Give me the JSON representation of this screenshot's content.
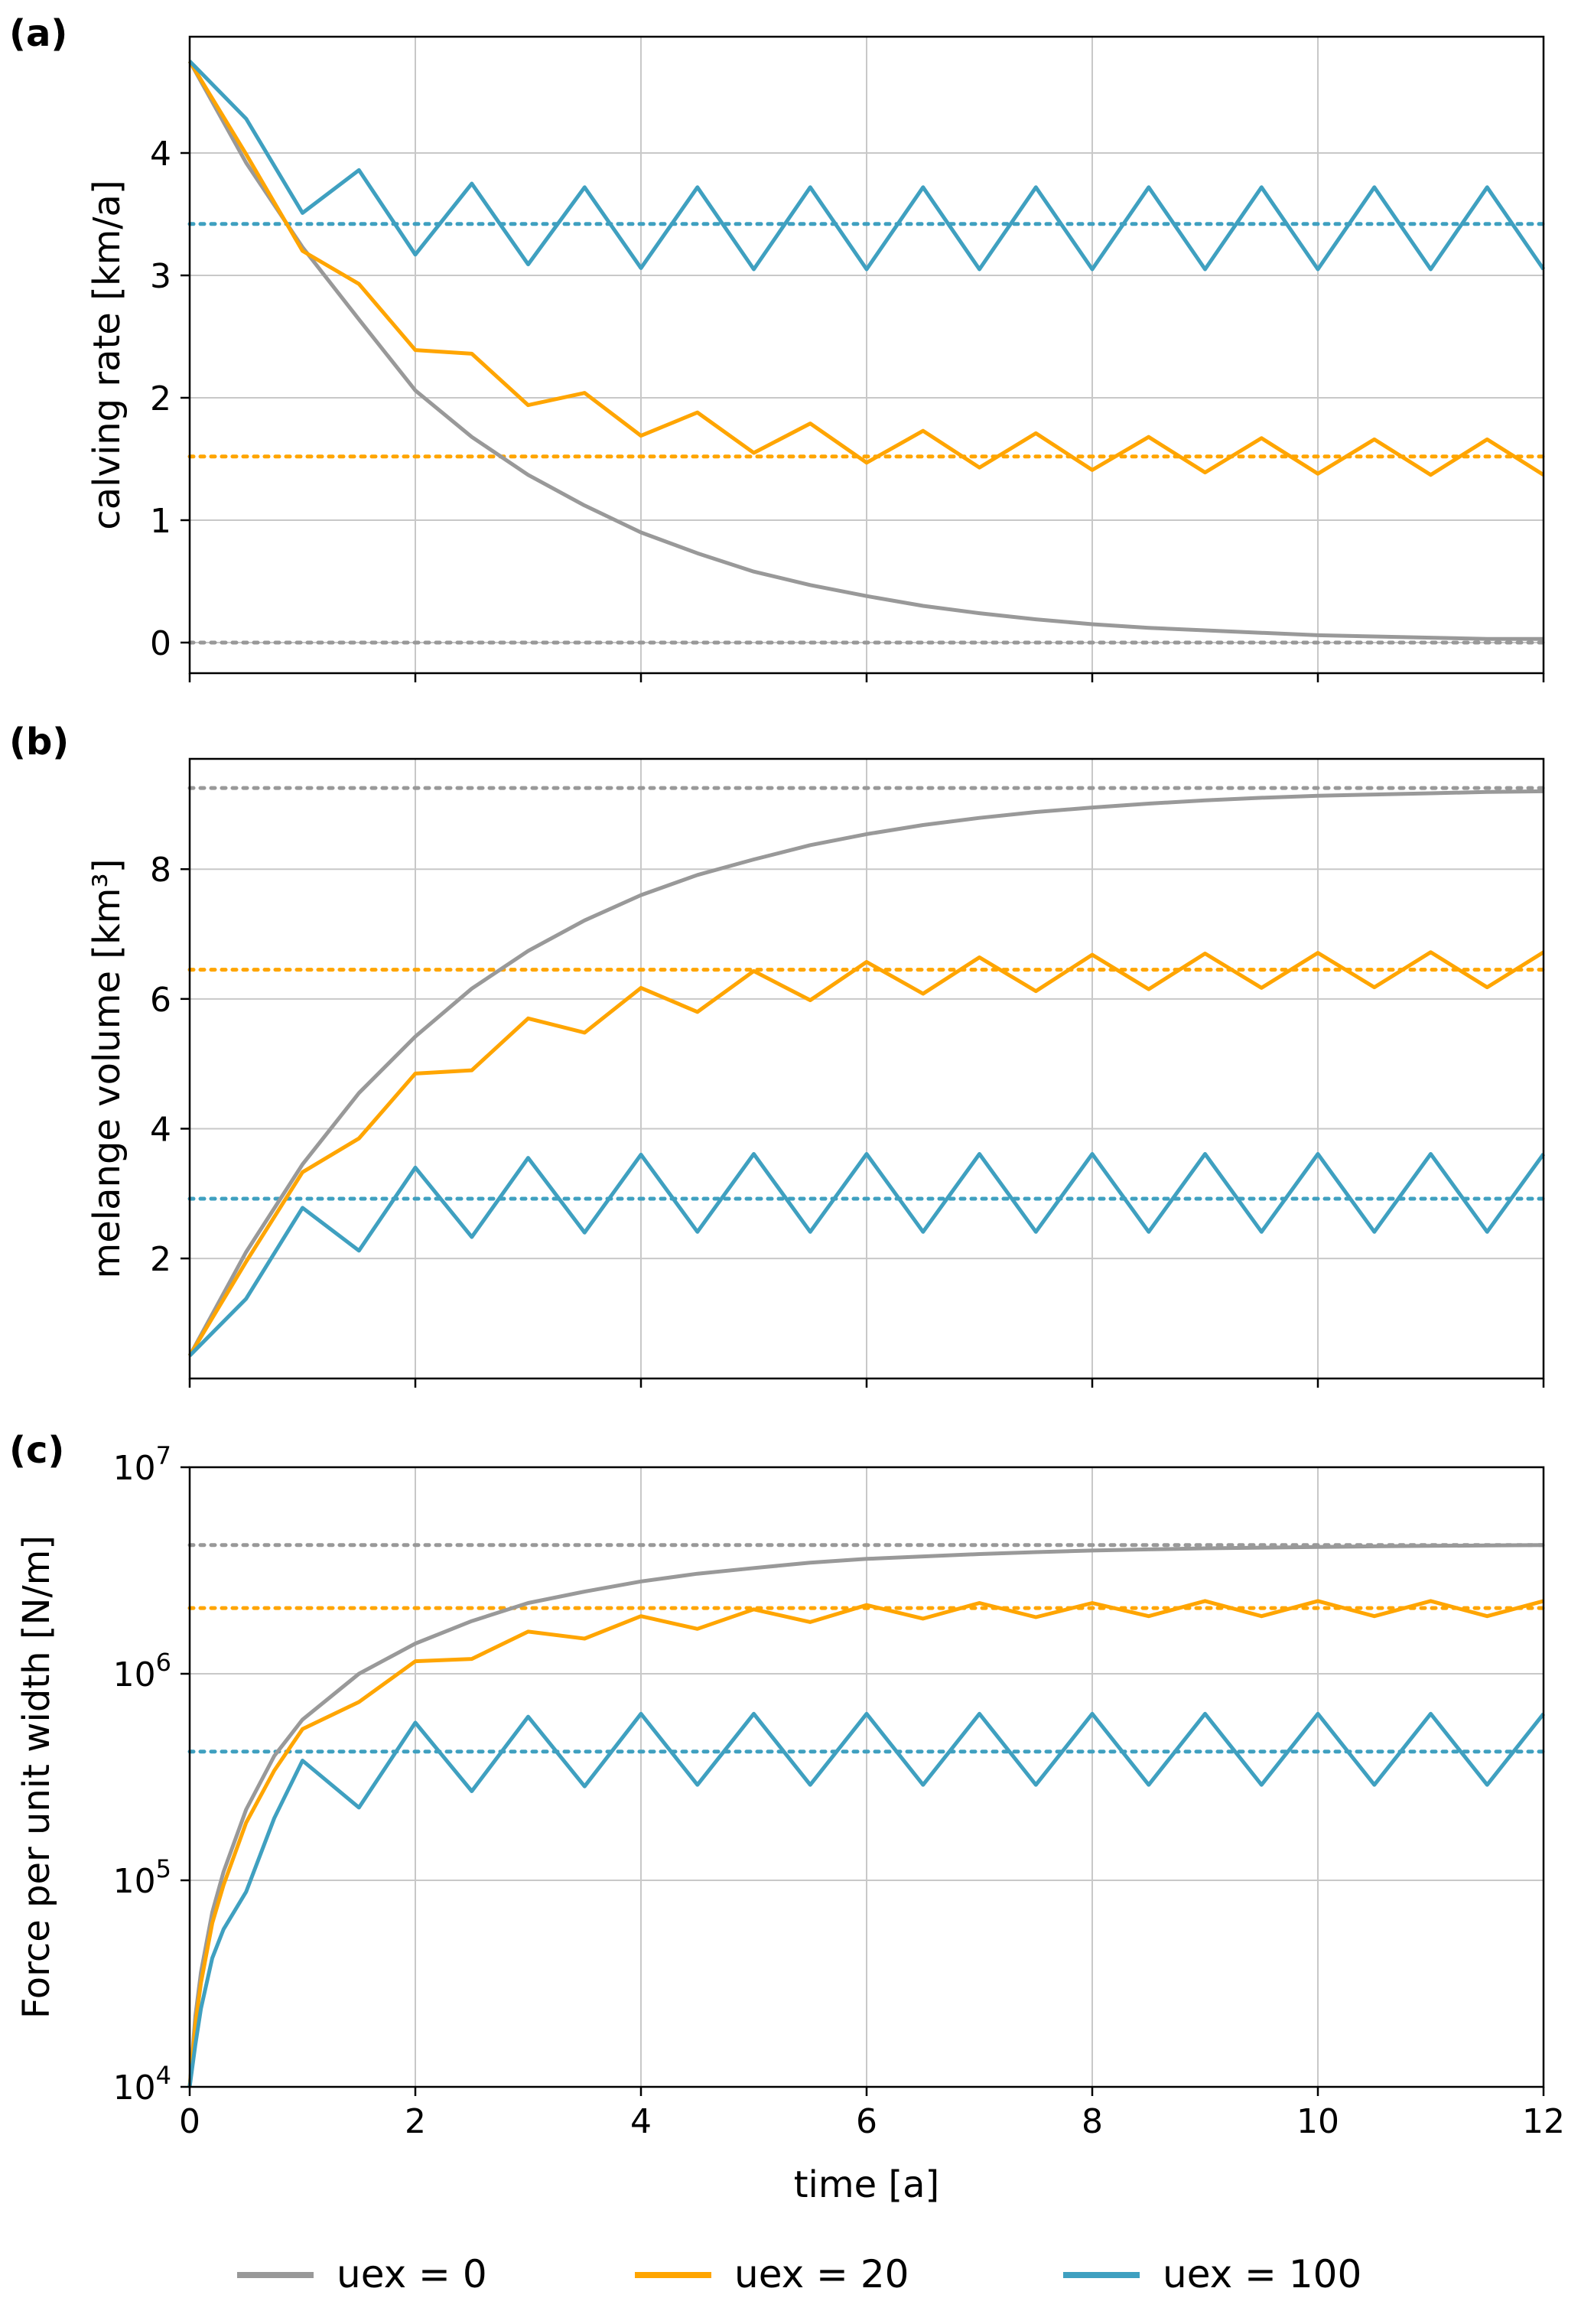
{
  "colors": {
    "grey": "#999999",
    "orange": "#FFA500",
    "blue": "#3FA0C0",
    "grid": "#c8c8c8",
    "axes": "#000000"
  },
  "legend": [
    {
      "key": "uex0",
      "label": "uex = 0",
      "color": "#999999"
    },
    {
      "key": "uex20",
      "label": "uex = 20",
      "color": "#FFA500"
    },
    {
      "key": "uex100",
      "label": "uex = 100",
      "color": "#3FA0C0"
    }
  ],
  "xaxis": {
    "label": "time [a]",
    "range": [
      0,
      12
    ],
    "ticks": [
      "0",
      "2",
      "4",
      "6",
      "8",
      "10",
      "12"
    ]
  },
  "chart_data": [
    {
      "panel": "(a)",
      "type": "line",
      "ylabel": "calving rate [km/a]",
      "ylim": [
        -0.25,
        4.95
      ],
      "yticks": [
        "0",
        "1",
        "2",
        "3",
        "4"
      ],
      "series": [
        {
          "name": "uex = 0",
          "color": "#999999",
          "x": [
            0,
            0.5,
            1,
            1.5,
            2,
            2.5,
            3,
            3.5,
            4,
            4.5,
            5,
            5.5,
            6,
            6.5,
            7,
            7.5,
            8,
            8.5,
            9,
            9.5,
            10,
            10.5,
            11,
            11.5,
            12
          ],
          "y": [
            4.75,
            3.92,
            3.23,
            2.64,
            2.06,
            1.68,
            1.37,
            1.12,
            0.9,
            0.73,
            0.58,
            0.47,
            0.38,
            0.3,
            0.24,
            0.19,
            0.15,
            0.12,
            0.1,
            0.08,
            0.06,
            0.05,
            0.04,
            0.03,
            0.03
          ]
        },
        {
          "name": "uex = 20",
          "color": "#FFA500",
          "x": [
            0,
            0.5,
            1,
            1.5,
            2,
            2.5,
            3,
            3.5,
            4,
            4.5,
            5,
            5.5,
            6,
            6.5,
            7,
            7.5,
            8,
            8.5,
            9,
            9.5,
            10,
            10.5,
            11,
            11.5,
            12
          ],
          "y": [
            4.75,
            3.99,
            3.2,
            2.93,
            2.39,
            2.36,
            1.94,
            2.04,
            1.69,
            1.88,
            1.55,
            1.79,
            1.47,
            1.73,
            1.43,
            1.71,
            1.41,
            1.68,
            1.39,
            1.67,
            1.38,
            1.66,
            1.37,
            1.66,
            1.37
          ]
        },
        {
          "name": "uex = 100",
          "color": "#3FA0C0",
          "x": [
            0,
            0.5,
            1,
            1.5,
            2,
            2.5,
            3,
            3.5,
            4,
            4.5,
            5,
            5.5,
            6,
            6.5,
            7,
            7.5,
            8,
            8.5,
            9,
            9.5,
            10,
            10.5,
            11,
            11.5,
            12
          ],
          "y": [
            4.75,
            4.28,
            3.51,
            3.86,
            3.17,
            3.75,
            3.09,
            3.72,
            3.06,
            3.72,
            3.05,
            3.72,
            3.05,
            3.72,
            3.05,
            3.72,
            3.05,
            3.72,
            3.05,
            3.72,
            3.05,
            3.72,
            3.05,
            3.72,
            3.05
          ]
        }
      ],
      "steady_states": [
        {
          "name": "uex = 0",
          "color": "#999999",
          "y": 0.0
        },
        {
          "name": "uex = 20",
          "color": "#FFA500",
          "y": 1.52
        },
        {
          "name": "uex = 100",
          "color": "#3FA0C0",
          "y": 3.42
        }
      ]
    },
    {
      "panel": "(b)",
      "type": "line",
      "ylabel": "melange volume [km³]",
      "ylim": [
        0.15,
        9.7
      ],
      "yticks": [
        "2",
        "4",
        "6",
        "8"
      ],
      "series": [
        {
          "name": "uex = 0",
          "color": "#999999",
          "x": [
            0,
            0.5,
            1,
            1.5,
            2,
            2.5,
            3,
            3.5,
            4,
            4.5,
            5,
            5.5,
            6,
            6.5,
            7,
            7.5,
            8,
            8.5,
            9,
            9.5,
            10,
            10.5,
            11,
            11.5,
            12
          ],
          "y": [
            0.5,
            2.1,
            3.45,
            4.55,
            5.42,
            6.16,
            6.74,
            7.21,
            7.6,
            7.91,
            8.15,
            8.37,
            8.54,
            8.68,
            8.79,
            8.88,
            8.95,
            9.01,
            9.06,
            9.1,
            9.13,
            9.15,
            9.17,
            9.19,
            9.2
          ]
        },
        {
          "name": "uex = 20",
          "color": "#FFA500",
          "x": [
            0,
            0.5,
            1,
            1.5,
            2,
            2.5,
            3,
            3.5,
            4,
            4.5,
            5,
            5.5,
            6,
            6.5,
            7,
            7.5,
            8,
            8.5,
            9,
            9.5,
            10,
            10.5,
            11,
            11.5,
            12
          ],
          "y": [
            0.5,
            1.95,
            3.33,
            3.85,
            4.85,
            4.9,
            5.7,
            5.48,
            6.17,
            5.8,
            6.43,
            5.98,
            6.57,
            6.08,
            6.64,
            6.12,
            6.68,
            6.15,
            6.7,
            6.17,
            6.71,
            6.18,
            6.72,
            6.18,
            6.72
          ]
        },
        {
          "name": "uex = 100",
          "color": "#3FA0C0",
          "x": [
            0,
            0.5,
            1,
            1.5,
            2,
            2.5,
            3,
            3.5,
            4,
            4.5,
            5,
            5.5,
            6,
            6.5,
            7,
            7.5,
            8,
            8.5,
            9,
            9.5,
            10,
            10.5,
            11,
            11.5,
            12
          ],
          "y": [
            0.5,
            1.38,
            2.78,
            2.12,
            3.4,
            2.33,
            3.55,
            2.4,
            3.6,
            2.41,
            3.61,
            2.41,
            3.61,
            2.41,
            3.61,
            2.41,
            3.61,
            2.41,
            3.61,
            2.41,
            3.61,
            2.41,
            3.61,
            2.41,
            3.61
          ]
        }
      ],
      "steady_states": [
        {
          "name": "uex = 0",
          "color": "#999999",
          "y": 9.25
        },
        {
          "name": "uex = 20",
          "color": "#FFA500",
          "y": 6.45
        },
        {
          "name": "uex = 100",
          "color": "#3FA0C0",
          "y": 2.92
        }
      ]
    },
    {
      "panel": "(c)",
      "type": "line",
      "scale": "log",
      "ylabel": "Force per unit width [N/m]",
      "ylim": [
        10000,
        10000000
      ],
      "yticks": [
        {
          "base": "10",
          "exp": "4"
        },
        {
          "base": "10",
          "exp": "5"
        },
        {
          "base": "10",
          "exp": "6"
        },
        {
          "base": "10",
          "exp": "7"
        }
      ],
      "series": [
        {
          "name": "uex = 0",
          "color": "#999999",
          "x": [
            0,
            0.05,
            0.1,
            0.2,
            0.3,
            0.5,
            0.75,
            1,
            1.5,
            2,
            2.5,
            3,
            3.5,
            4,
            4.5,
            5,
            5.5,
            6,
            6.5,
            7,
            7.5,
            8,
            8.5,
            9,
            9.5,
            10,
            10.5,
            11,
            11.5,
            12
          ],
          "y": [
            10000,
            22000,
            36000,
            70000,
            110000,
            220000,
            400000,
            600000,
            1000000,
            1400000,
            1800000,
            2200000,
            2500000,
            2800000,
            3050000,
            3250000,
            3450000,
            3600000,
            3700000,
            3800000,
            3880000,
            3950000,
            4000000,
            4050000,
            4080000,
            4110000,
            4140000,
            4160000,
            4180000,
            4200000
          ]
        },
        {
          "name": "uex = 20",
          "color": "#FFA500",
          "x": [
            0,
            0.05,
            0.1,
            0.2,
            0.3,
            0.5,
            0.75,
            1,
            1.5,
            2,
            2.5,
            3,
            3.5,
            4,
            4.5,
            5,
            5.5,
            6,
            6.5,
            7,
            7.5,
            8,
            8.5,
            9,
            9.5,
            10,
            10.5,
            11,
            11.5,
            12
          ],
          "y": [
            10000,
            20000,
            32000,
            62000,
            95000,
            190000,
            340000,
            540000,
            730000,
            1150000,
            1180000,
            1600000,
            1480000,
            1900000,
            1650000,
            2050000,
            1780000,
            2150000,
            1850000,
            2200000,
            1880000,
            2200000,
            1900000,
            2250000,
            1900000,
            2250000,
            1900000,
            2250000,
            1900000,
            2250000
          ]
        },
        {
          "name": "uex = 100",
          "color": "#3FA0C0",
          "x": [
            0,
            0.05,
            0.1,
            0.2,
            0.3,
            0.5,
            0.75,
            1,
            1.5,
            2,
            2.5,
            3,
            3.5,
            4,
            4.5,
            5,
            5.5,
            6,
            6.5,
            7,
            7.5,
            8,
            8.5,
            9,
            9.5,
            10,
            10.5,
            11,
            11.5,
            12
          ],
          "y": [
            10000,
            16000,
            24000,
            42000,
            58000,
            88000,
            200000,
            380000,
            225000,
            580000,
            270000,
            620000,
            285000,
            640000,
            290000,
            640000,
            290000,
            640000,
            290000,
            640000,
            290000,
            640000,
            290000,
            640000,
            290000,
            640000,
            290000,
            640000,
            290000,
            640000
          ]
        }
      ],
      "steady_states": [
        {
          "name": "uex = 0",
          "color": "#999999",
          "y": 4200000
        },
        {
          "name": "uex = 20",
          "color": "#FFA500",
          "y": 2080000
        },
        {
          "name": "uex = 100",
          "color": "#3FA0C0",
          "y": 420000
        }
      ]
    }
  ]
}
